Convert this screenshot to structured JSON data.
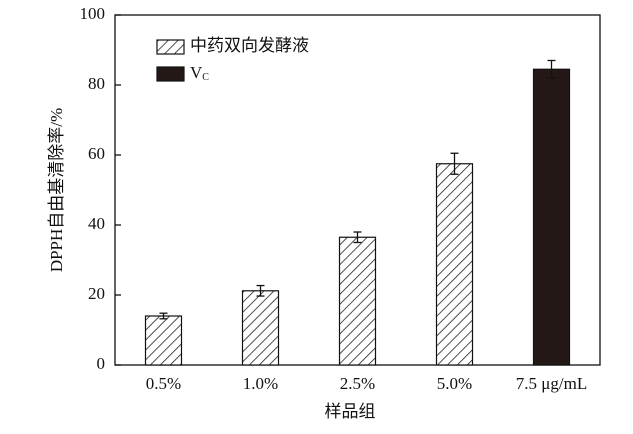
{
  "chart_data": {
    "type": "bar",
    "x_label": "样品组",
    "y_label": "DPPH自由基清除率/%",
    "categories": [
      "0.5%",
      "1.0%",
      "2.5%",
      "5.0%",
      "7.5 μg/mL"
    ],
    "series": [
      {
        "name": "中药双向发酵液",
        "color": "#222222",
        "hatch": true,
        "values": [
          14,
          21.2,
          36.5,
          57.5,
          null
        ],
        "errors": [
          0.8,
          1.5,
          1.5,
          3,
          null
        ]
      },
      {
        "name": "V",
        "subscript": "C",
        "color": "#231815",
        "hatch": false,
        "values": [
          null,
          null,
          null,
          null,
          84.5
        ],
        "errors": [
          null,
          null,
          null,
          null,
          2.5
        ]
      }
    ],
    "ylim": [
      0,
      100
    ],
    "yticks": [
      0,
      20,
      40,
      60,
      80,
      100
    ],
    "grid": false,
    "legend": "upper left"
  }
}
